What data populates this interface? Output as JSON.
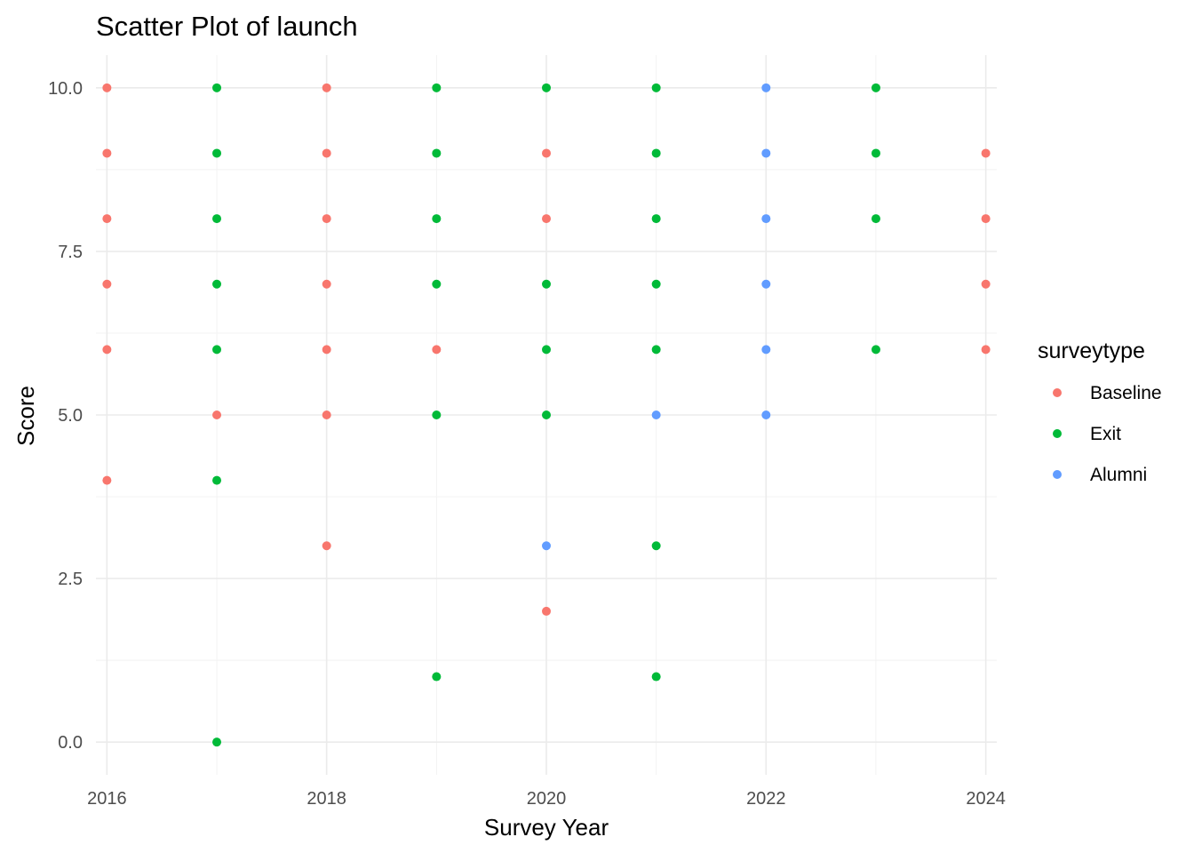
{
  "chart_data": {
    "type": "scatter",
    "title": "Scatter Plot of launch",
    "xlabel": "Survey Year",
    "ylabel": "Score",
    "xlim": [
      2015.9,
      2024.1
    ],
    "ylim": [
      -0.5,
      10.5
    ],
    "x_ticks": [
      2016,
      2018,
      2020,
      2022,
      2024
    ],
    "x_tick_labels": [
      "2016",
      "2018",
      "2020",
      "2022",
      "2024"
    ],
    "y_ticks": [
      0,
      2.5,
      5,
      7.5,
      10
    ],
    "y_tick_labels": [
      "0.0",
      "2.5",
      "5.0",
      "7.5",
      "10.0"
    ],
    "grid": true,
    "legend": {
      "title": "surveytype",
      "position": "right"
    },
    "series": [
      {
        "name": "Baseline",
        "color": "#F8766D",
        "points": [
          [
            2016,
            10
          ],
          [
            2016,
            9
          ],
          [
            2016,
            8
          ],
          [
            2016,
            7
          ],
          [
            2016,
            6
          ],
          [
            2016,
            4
          ],
          [
            2017,
            5
          ],
          [
            2018,
            10
          ],
          [
            2018,
            9
          ],
          [
            2018,
            8
          ],
          [
            2018,
            7
          ],
          [
            2018,
            6
          ],
          [
            2018,
            5
          ],
          [
            2018,
            3
          ],
          [
            2019,
            6
          ],
          [
            2020,
            9
          ],
          [
            2020,
            8
          ],
          [
            2020,
            2
          ],
          [
            2024,
            9
          ],
          [
            2024,
            8
          ],
          [
            2024,
            7
          ],
          [
            2024,
            6
          ]
        ]
      },
      {
        "name": "Exit",
        "color": "#00BA38",
        "points": [
          [
            2017,
            10
          ],
          [
            2017,
            9
          ],
          [
            2017,
            8
          ],
          [
            2017,
            7
          ],
          [
            2017,
            6
          ],
          [
            2017,
            4
          ],
          [
            2017,
            0
          ],
          [
            2019,
            10
          ],
          [
            2019,
            9
          ],
          [
            2019,
            8
          ],
          [
            2019,
            7
          ],
          [
            2019,
            5
          ],
          [
            2019,
            1
          ],
          [
            2020,
            10
          ],
          [
            2020,
            7
          ],
          [
            2020,
            6
          ],
          [
            2020,
            5
          ],
          [
            2021,
            10
          ],
          [
            2021,
            9
          ],
          [
            2021,
            8
          ],
          [
            2021,
            7
          ],
          [
            2021,
            6
          ],
          [
            2021,
            3
          ],
          [
            2021,
            1
          ],
          [
            2023,
            10
          ],
          [
            2023,
            9
          ],
          [
            2023,
            8
          ],
          [
            2023,
            6
          ]
        ]
      },
      {
        "name": "Alumni",
        "color": "#619CFF",
        "points": [
          [
            2020,
            3
          ],
          [
            2021,
            5
          ],
          [
            2022,
            10
          ],
          [
            2022,
            9
          ],
          [
            2022,
            8
          ],
          [
            2022,
            7
          ],
          [
            2022,
            6
          ],
          [
            2022,
            5
          ]
        ]
      }
    ]
  }
}
